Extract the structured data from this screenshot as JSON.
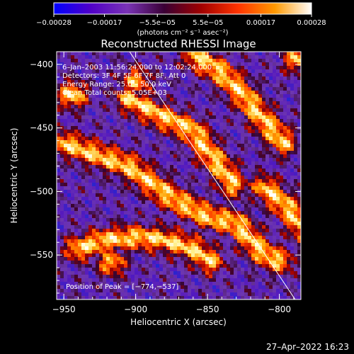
{
  "chart_data": {
    "type": "heatmap",
    "title": "Reconstructed RHESSI Image",
    "xlabel": "Heliocentric X (arcsec)",
    "ylabel": "Heliocentric Y (arcsec)",
    "xlim": [
      -955,
      -785
    ],
    "ylim": [
      -585,
      -390
    ],
    "x_ticks": [
      -950,
      -900,
      -850,
      -800
    ],
    "y_ticks": [
      -400,
      -450,
      -500,
      -550
    ],
    "x_tick_labels": [
      "−950",
      "−900",
      "−850",
      "−800"
    ],
    "y_tick_labels": [
      "−400",
      "−450",
      "−500",
      "−550"
    ],
    "colorbar": {
      "range": [
        -0.00028,
        0.00028
      ],
      "ticks": [
        -0.00028,
        -0.00017,
        -5.5e-05,
        5.5e-05,
        0.00017,
        0.00028
      ],
      "tick_labels": [
        "−0.00028",
        "−0.00017",
        "−5.5e−05",
        "5.5e−05",
        "0.00017",
        "0.00028"
      ],
      "units": "(photons cm⁻² s⁻¹ asec⁻²)",
      "colors": [
        "#0000ff",
        "#5000c8",
        "#7a33b5",
        "#3a0035",
        "#a00000",
        "#ff3300",
        "#ff9900",
        "#ffffff"
      ]
    },
    "annotations": {
      "time": "6–Jan–2003 11:56:24.000 to 12:02:24.000",
      "detectors": "Detectors: 3F 4F 5F 6F 7F 8F, Att 0",
      "energy": "Energy Range: 25.0 – 50.0 keV",
      "clean": "Clean     Total counts: 5.05E+03",
      "peak": "Position of Peak = [−774,−537]"
    },
    "limb_line": {
      "x": [
        -906,
        -789
      ],
      "y": [
        -387,
        -585
      ]
    },
    "peak_position": [
      -774,
      -537
    ],
    "ridges": [
      {
        "x": [
          -950,
          -905,
          -875,
          -850,
          -830,
          -812,
          -800
        ],
        "y": [
          -462,
          -480,
          -505,
          -520,
          -525,
          -548,
          -555
        ]
      },
      {
        "x": [
          -905,
          -880,
          -860,
          -850,
          -840,
          -832
        ],
        "y": [
          -427,
          -442,
          -452,
          -468,
          -482,
          -495
        ]
      },
      {
        "x": [
          -858,
          -843,
          -828,
          -813,
          -797
        ],
        "y": [
          -394,
          -404,
          -420,
          -441,
          -462
        ]
      },
      {
        "x": [
          -940,
          -920,
          -900,
          -880,
          -860,
          -848
        ],
        "y": [
          -545,
          -538,
          -536,
          -538,
          -545,
          -555
        ]
      },
      {
        "x": [
          -810,
          -795,
          -788,
          -778
        ],
        "y": [
          -497,
          -512,
          -522,
          -537
        ]
      }
    ],
    "spots": [
      {
        "x": -944,
        "y": -424,
        "v": 0.9
      },
      {
        "x": -787,
        "y": -396,
        "v": 0.8
      },
      {
        "x": -900,
        "y": -413,
        "v": 0.75
      },
      {
        "x": -917,
        "y": -556,
        "v": 0.75
      },
      {
        "x": -775,
        "y": -537,
        "v": 1.0
      }
    ]
  },
  "footer": {
    "datetime": "27–Apr–2022 16:23"
  }
}
